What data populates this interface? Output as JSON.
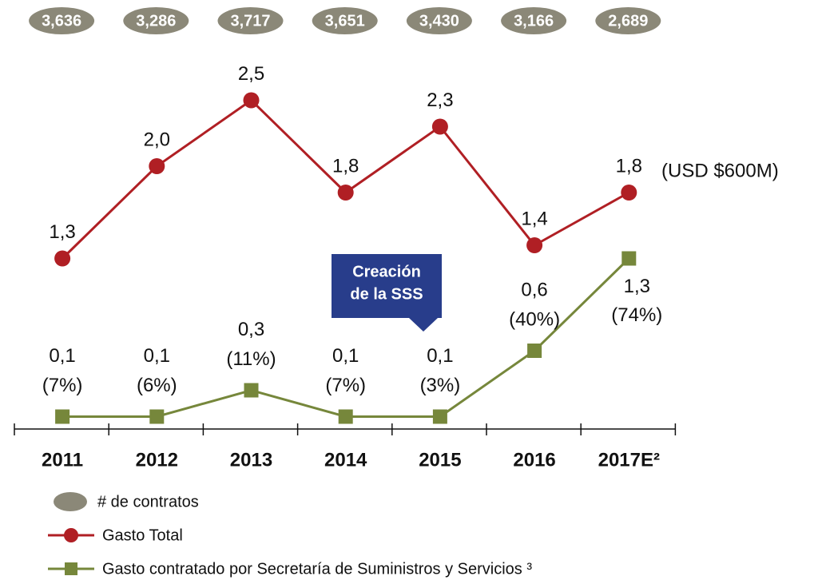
{
  "chart_data": {
    "type": "line",
    "categories": [
      "2011",
      "2012",
      "2013",
      "2014",
      "2015",
      "2016",
      "2017E²"
    ],
    "ylim": [
      0,
      3.2
    ],
    "series": [
      {
        "name": "Gasto Total",
        "color": "#b01f24",
        "marker": "circle",
        "values": [
          1.3,
          2.0,
          2.5,
          1.8,
          2.3,
          1.4,
          1.8
        ],
        "value_labels": [
          "1,3",
          "2,0",
          "2,5",
          "1,8",
          "2,3",
          "1,4",
          "1,8"
        ]
      },
      {
        "name": "Gasto contratado por Secretaría de Suministros y Servicios ³",
        "color": "#76873b",
        "marker": "square",
        "values": [
          0.1,
          0.1,
          0.3,
          0.1,
          0.1,
          0.6,
          1.3
        ],
        "value_labels": [
          "0,1",
          "0,1",
          "0,3",
          "0,1",
          "0,1",
          "0,6",
          "1,3"
        ],
        "shares": [
          7,
          6,
          11,
          7,
          3,
          40,
          74
        ],
        "share_labels": [
          "(7%)",
          "(6%)",
          "(11%)",
          "(7%)",
          "(3%)",
          "(40%)",
          "(74%)"
        ]
      }
    ],
    "contracts": {
      "name": "# de contratos",
      "color": "#8b8878",
      "values": [
        3636,
        3286,
        3717,
        3651,
        3430,
        3166,
        2689
      ],
      "value_labels": [
        "3,636",
        "3,286",
        "3,717",
        "3,651",
        "3,430",
        "3,166",
        "2,689"
      ]
    },
    "annotations": [
      {
        "text": "(USD $600M)"
      }
    ],
    "callout": {
      "lines": [
        "Creación",
        "de la SSS"
      ]
    }
  }
}
